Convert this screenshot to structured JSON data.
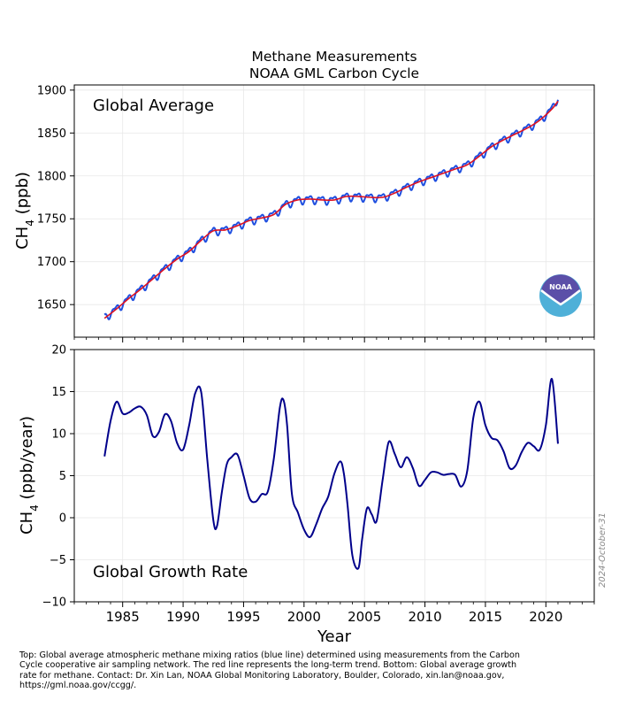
{
  "title": "Methane Measurements",
  "subtitle": "NOAA GML Carbon Cycle",
  "caption": "Top:  Global average atmospheric methane mixing ratios (blue line) determined using measurements from the Carbon Cycle cooperative air sampling network.  The red line represents the long-term trend.  Bottom:  Global average growth rate for methane.  Contact:  Dr. Xin Lan, NOAA Global Monitoring Laboratory, Boulder, Colorado, xin.lan@noaa.gov, https://gml.noaa.gov/ccgg/.",
  "date_stamp": "2024-October-31",
  "logo_text": "NOAA",
  "colors": {
    "monthly": "#1f4fe0",
    "trend": "#dd1122",
    "growth": "#00008b",
    "logo_top": "#5b4fa8",
    "logo_bottom": "#4fb0d8"
  },
  "chart_data": [
    {
      "type": "line",
      "annotation": "Global Average",
      "xlabel": "",
      "ylabel": "CH4 (ppb)",
      "ylabel_main": "CH",
      "ylabel_sub": "4",
      "ylabel_tail": " (ppb)",
      "xlim": [
        1981,
        2024
      ],
      "ylim": [
        1612,
        1906
      ],
      "yticks": [
        1650,
        1700,
        1750,
        1800,
        1850,
        1900
      ],
      "grid": true,
      "seasonal_amplitude": 8,
      "series": [
        {
          "role": "monthly",
          "x": [
            1983.5,
            1984.5,
            1985.5,
            1986.5,
            1987.5,
            1988.5,
            1989.5,
            1990.5,
            1991.5,
            1992.5,
            1993.5,
            1994.5,
            1995.5,
            1996.5,
            1997.5,
            1998.5,
            1999.5,
            2000.5,
            2001.5,
            2002.5,
            2003.5,
            2004.5,
            2005.5,
            2006.5,
            2007.5,
            2008.5,
            2009.5,
            2010.5,
            2011.5,
            2012.5,
            2013.5,
            2014.5,
            2015.5,
            2016.5,
            2017.5,
            2018.5,
            2019.5,
            2020.5,
            2021.0
          ],
          "y": [
            1635,
            1645,
            1657,
            1668,
            1680,
            1692,
            1703,
            1712,
            1725,
            1736,
            1737,
            1742,
            1748,
            1751,
            1755,
            1767,
            1772,
            1773,
            1772,
            1772,
            1776,
            1776,
            1775,
            1775,
            1780,
            1787,
            1793,
            1798,
            1803,
            1808,
            1813,
            1823,
            1834,
            1842,
            1849,
            1856,
            1865,
            1878,
            1892
          ]
        },
        {
          "role": "trend",
          "x": [
            1983.5,
            1984.5,
            1985.5,
            1986.5,
            1987.5,
            1988.5,
            1989.5,
            1990.5,
            1991.5,
            1992.5,
            1993.5,
            1994.5,
            1995.5,
            1996.5,
            1997.5,
            1998.5,
            1999.5,
            2000.5,
            2001.5,
            2002.5,
            2003.5,
            2004.5,
            2005.5,
            2006.5,
            2007.5,
            2008.5,
            2009.5,
            2010.5,
            2011.5,
            2012.5,
            2013.5,
            2014.5,
            2015.5,
            2016.5,
            2017.5,
            2018.5,
            2019.5,
            2020.5,
            2021.0
          ],
          "y": [
            1634,
            1645,
            1657,
            1668,
            1680,
            1692,
            1703,
            1712,
            1725,
            1736,
            1737,
            1742,
            1748,
            1751,
            1755,
            1767,
            1772,
            1773,
            1772,
            1772,
            1776,
            1776,
            1775,
            1775,
            1780,
            1787,
            1793,
            1798,
            1803,
            1808,
            1813,
            1823,
            1834,
            1842,
            1849,
            1856,
            1865,
            1878,
            1887
          ]
        }
      ]
    },
    {
      "type": "line",
      "annotation": "Global Growth Rate",
      "xlabel": "Year",
      "ylabel": "CH4 (ppb/year)",
      "ylabel_main": "CH",
      "ylabel_sub": "4",
      "ylabel_tail": " (ppb/year)",
      "xlim": [
        1981,
        2024
      ],
      "ylim": [
        -10,
        20
      ],
      "yticks": [
        -10,
        -5,
        0,
        5,
        10,
        15,
        20
      ],
      "xticks": [
        1985,
        1990,
        1995,
        2000,
        2005,
        2010,
        2015,
        2020
      ],
      "grid": true,
      "series": [
        {
          "role": "growth",
          "x": [
            1983.5,
            1984.0,
            1984.5,
            1985.0,
            1985.5,
            1986.0,
            1986.5,
            1987.0,
            1987.5,
            1988.0,
            1988.5,
            1989.0,
            1989.5,
            1990.0,
            1990.5,
            1991.0,
            1991.5,
            1992.0,
            1992.5,
            1992.8,
            1993.2,
            1993.6,
            1994.0,
            1994.5,
            1995.0,
            1995.5,
            1996.0,
            1996.5,
            1997.0,
            1997.5,
            1998.0,
            1998.3,
            1998.6,
            1999.0,
            1999.5,
            2000.0,
            2000.5,
            2001.0,
            2001.5,
            2002.0,
            2002.5,
            2003.0,
            2003.3,
            2003.6,
            2004.0,
            2004.5,
            2004.8,
            2005.2,
            2005.6,
            2006.0,
            2006.5,
            2007.0,
            2007.5,
            2008.0,
            2008.5,
            2009.0,
            2009.5,
            2010.0,
            2010.5,
            2011.0,
            2011.5,
            2012.0,
            2012.5,
            2013.0,
            2013.5,
            2014.0,
            2014.5,
            2015.0,
            2015.5,
            2016.0,
            2016.5,
            2017.0,
            2017.5,
            2018.0,
            2018.5,
            2019.0,
            2019.5,
            2020.0,
            2020.5,
            2021.0
          ],
          "y": [
            7.3,
            11.5,
            13.8,
            12.4,
            12.5,
            13.0,
            13.2,
            12.2,
            9.7,
            10.2,
            12.3,
            11.5,
            8.9,
            8.1,
            11.0,
            14.8,
            14.9,
            6.9,
            -0.3,
            -1.0,
            3.0,
            6.3,
            7.2,
            7.5,
            5.0,
            2.3,
            1.9,
            2.8,
            3.1,
            7.0,
            13.1,
            14.0,
            11.0,
            2.8,
            0.6,
            -1.4,
            -2.3,
            -0.8,
            1.1,
            2.5,
            5.2,
            6.7,
            5.2,
            1.5,
            -4.5,
            -6.0,
            -2.6,
            1.1,
            0.4,
            -0.4,
            4.5,
            9.0,
            7.6,
            6.0,
            7.2,
            5.9,
            3.8,
            4.5,
            5.4,
            5.4,
            5.1,
            5.2,
            5.1,
            3.7,
            5.6,
            11.9,
            13.8,
            11.0,
            9.5,
            9.2,
            7.9,
            5.9,
            6.2,
            7.8,
            8.9,
            8.5,
            8.1,
            11.0,
            16.5,
            8.8
          ]
        }
      ]
    }
  ]
}
